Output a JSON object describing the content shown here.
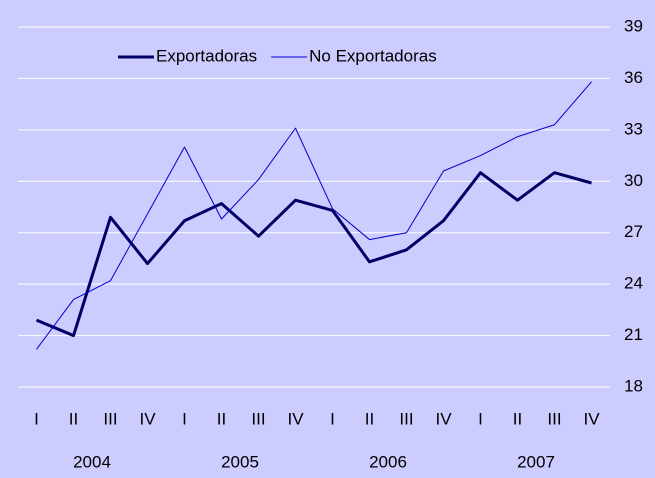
{
  "chart_data": {
    "type": "line",
    "categories": [
      "I",
      "II",
      "III",
      "IV",
      "I",
      "II",
      "III",
      "IV",
      "I",
      "II",
      "III",
      "IV",
      "I",
      "II",
      "III",
      "IV"
    ],
    "year_labels": [
      "2004",
      "2005",
      "2006",
      "2007"
    ],
    "series": [
      {
        "name": "Exportadoras",
        "color": "#000066",
        "width": 3,
        "values": [
          21.9,
          21.0,
          27.9,
          25.2,
          27.7,
          28.7,
          26.8,
          28.9,
          28.3,
          25.3,
          26.0,
          27.7,
          30.5,
          28.9,
          30.5,
          29.9
        ]
      },
      {
        "name": "No Exportadoras",
        "color": "#0000cc",
        "width": 1,
        "values": [
          20.2,
          23.1,
          24.2,
          28.1,
          32.0,
          27.8,
          30.1,
          33.1,
          28.4,
          26.6,
          27.0,
          30.6,
          31.5,
          32.6,
          33.3,
          35.8
        ]
      }
    ],
    "ylim": [
      18,
      39
    ],
    "yticks": [
      18,
      21,
      24,
      27,
      30,
      33,
      36,
      39
    ],
    "grid": true,
    "legend": "top"
  }
}
